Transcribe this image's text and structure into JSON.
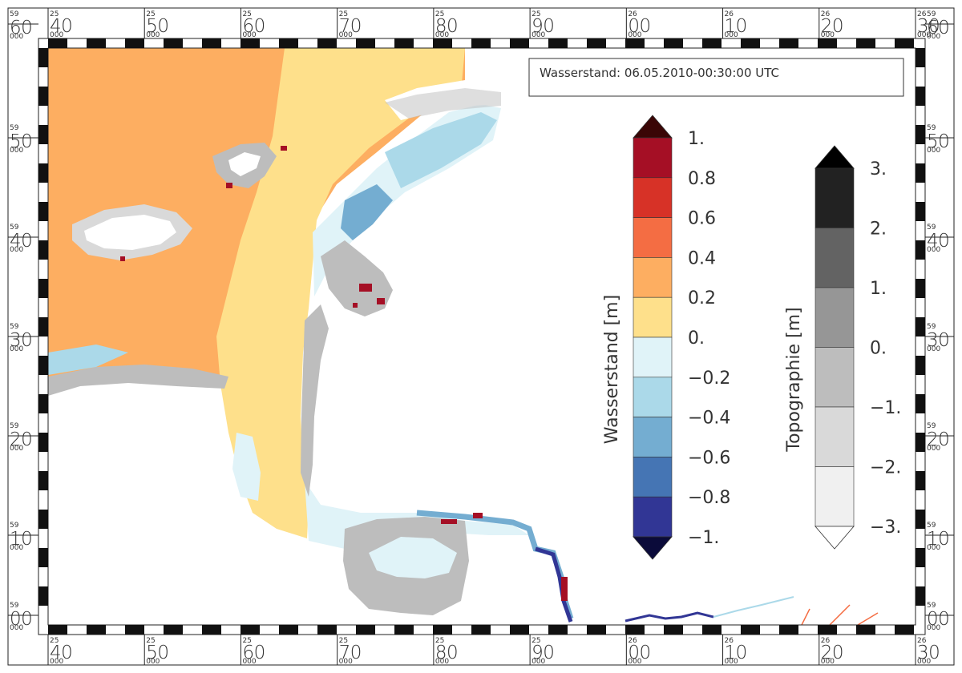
{
  "title": "Wasserstand: 06.05.2010-00:30:00 UTC",
  "frame": {
    "x_ticks": [
      {
        "sup": "25",
        "main": "40",
        "sub": "000"
      },
      {
        "sup": "25",
        "main": "50",
        "sub": "000"
      },
      {
        "sup": "25",
        "main": "60",
        "sub": "000"
      },
      {
        "sup": "25",
        "main": "70",
        "sub": "000"
      },
      {
        "sup": "25",
        "main": "80",
        "sub": "000"
      },
      {
        "sup": "25",
        "main": "90",
        "sub": "000"
      },
      {
        "sup": "26",
        "main": "00",
        "sub": "000"
      },
      {
        "sup": "26",
        "main": "10",
        "sub": "000"
      },
      {
        "sup": "26",
        "main": "20",
        "sub": "000"
      },
      {
        "sup": "26",
        "main": "30",
        "sub": "000"
      }
    ],
    "y_ticks": [
      {
        "sup": "59",
        "main": "60",
        "sub": "000"
      },
      {
        "sup": "59",
        "main": "50",
        "sub": "000"
      },
      {
        "sup": "59",
        "main": "40",
        "sub": "000"
      },
      {
        "sup": "59",
        "main": "30",
        "sub": "000"
      },
      {
        "sup": "59",
        "main": "20",
        "sub": "000"
      },
      {
        "sup": "59",
        "main": "10",
        "sub": "000"
      },
      {
        "sup": "59",
        "main": "00",
        "sub": "000"
      }
    ]
  },
  "legend_water": {
    "label": "Wasserstand [m]",
    "ticks": [
      "1.",
      "0.8",
      "0.6",
      "0.4",
      "0.2",
      "0.",
      "−0.2",
      "−0.4",
      "−0.6",
      "−0.8",
      "−1."
    ],
    "colors": [
      "#3a0606",
      "#a50f25",
      "#d73227",
      "#f46d43",
      "#fdae61",
      "#fee08b",
      "#e0f3f8",
      "#abd9e9",
      "#74add1",
      "#4575b4",
      "#313695",
      "#0b0b3a"
    ]
  },
  "legend_topo": {
    "label": "Topographie [m]",
    "ticks": [
      "3.",
      "2.",
      "1.",
      "0.",
      "−1.",
      "−2.",
      "−3."
    ],
    "colors": [
      "#000000",
      "#222222",
      "#636363",
      "#969696",
      "#bdbdbd",
      "#d9d9d9",
      "#f0f0f0",
      "#ffffff"
    ]
  },
  "map_colors": {
    "sea_high": "#fdae61",
    "sea": "#fee08b",
    "shallow": "#e0f3f8",
    "mid": "#abd9e9",
    "deep": "#74add1",
    "flat": "#bdbdbd",
    "flat_light": "#d9d9d9",
    "land": "#ffffff"
  }
}
